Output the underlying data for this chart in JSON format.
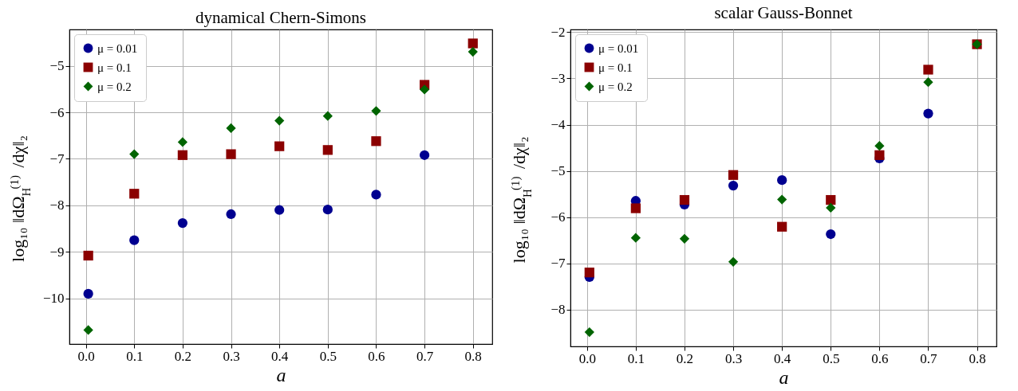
{
  "chart_data": [
    {
      "type": "scatter",
      "title": "dynamical Chern-Simons",
      "xlabel": "a",
      "ylabel": "log₁₀ ‖dΩ$_{H}$$^{(1)}$/dχ‖₂",
      "x": [
        0.005,
        0.1,
        0.2,
        0.3,
        0.4,
        0.5,
        0.6,
        0.7,
        0.8
      ],
      "xlim": [
        -0.034,
        0.84
      ],
      "xticks": [
        {
          "value": 0,
          "label": "0.0"
        },
        0.1,
        0.2,
        0.3,
        0.4,
        0.5,
        0.6,
        0.7,
        0.8
      ],
      "ylim": [
        -10.98,
        -4.22
      ],
      "yticks": [
        -10,
        -9,
        -8,
        -7,
        -6,
        -5
      ],
      "grid": true,
      "legend": "top left",
      "series": [
        {
          "name": "μ = 0.01",
          "color": "#000090",
          "marker": "circle",
          "values": [
            -9.9,
            -8.75,
            -8.38,
            -8.19,
            -8.1,
            -8.09,
            -7.77,
            -6.92,
            null
          ]
        },
        {
          "name": "μ = 0.1",
          "color": "#8b0000",
          "marker": "square",
          "values": [
            -9.08,
            -7.75,
            -6.92,
            -6.9,
            -6.73,
            -6.81,
            -6.62,
            -5.41,
            -4.52
          ]
        },
        {
          "name": "μ = 0.2",
          "color": "#006400",
          "marker": "diamond",
          "values": [
            -10.68,
            -6.9,
            -6.64,
            -6.34,
            -6.18,
            -6.08,
            -5.97,
            -5.51,
            -4.7
          ]
        }
      ]
    },
    {
      "type": "scatter",
      "title": "scalar Gauss-Bonnet",
      "xlabel": "a",
      "ylabel": "log₁₀ ‖dΩ$_{H}$$^{(1)}$/dχ‖₂",
      "x": [
        0.005,
        0.1,
        0.2,
        0.3,
        0.4,
        0.5,
        0.6,
        0.7,
        0.8
      ],
      "xlim": [
        -0.034,
        0.84
      ],
      "xticks": [
        {
          "value": 0,
          "label": "0.0"
        },
        0.1,
        0.2,
        0.3,
        0.4,
        0.5,
        0.6,
        0.7,
        0.8
      ],
      "ylim": [
        -8.8,
        -1.94
      ],
      "yticks": [
        -8,
        -7,
        -6,
        -5,
        -4,
        -3,
        -2
      ],
      "grid": true,
      "legend": "top left",
      "series": [
        {
          "name": "μ = 0.01",
          "color": "#000090",
          "marker": "circle",
          "values": [
            -7.3,
            -5.65,
            -5.73,
            -5.32,
            -5.2,
            -6.37,
            -4.73,
            -3.76,
            null
          ]
        },
        {
          "name": "μ = 0.1",
          "color": "#8b0000",
          "marker": "square",
          "values": [
            -7.2,
            -5.81,
            -5.63,
            -5.09,
            -6.21,
            -5.63,
            -4.66,
            -2.81,
            -2.26
          ]
        },
        {
          "name": "μ = 0.2",
          "color": "#006400",
          "marker": "diamond",
          "values": [
            -8.49,
            -6.45,
            -6.47,
            -6.97,
            -5.62,
            -5.8,
            -4.46,
            -3.08,
            -2.26
          ]
        }
      ]
    }
  ]
}
